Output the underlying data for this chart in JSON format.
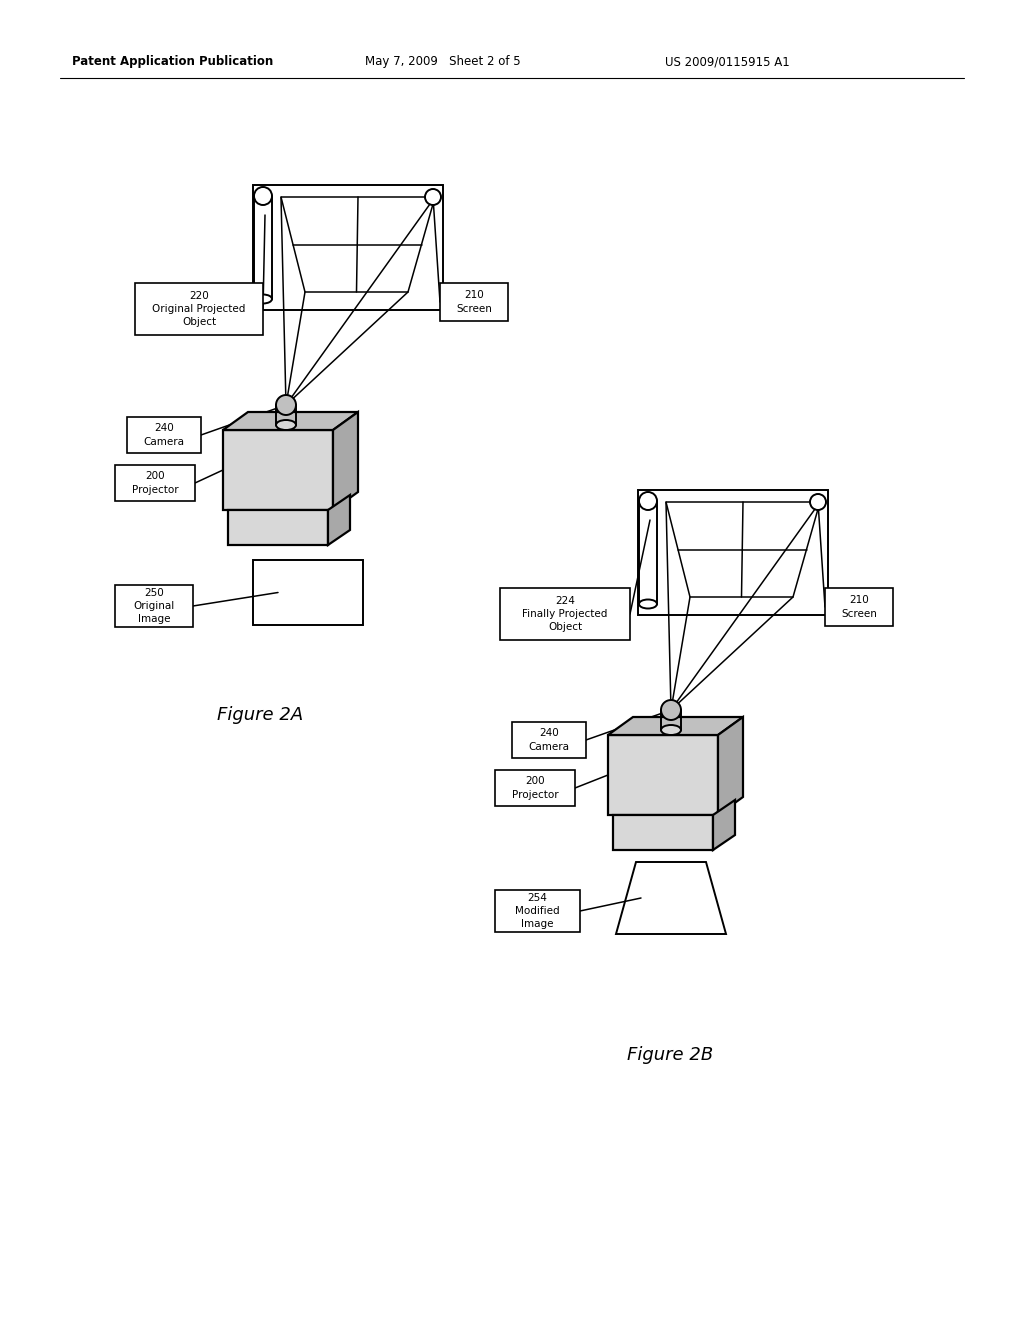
{
  "background_color": "#ffffff",
  "header_text": "Patent Application Publication",
  "header_date": "May 7, 2009   Sheet 2 of 5",
  "header_patent": "US 2009/0115915 A1",
  "fig2a_label": "Figure 2A",
  "fig2b_label": "Figure 2B",
  "line_color": "#000000",
  "gray_light": "#d8d8d8",
  "gray_mid": "#c0c0c0",
  "gray_dark": "#a8a8a8"
}
